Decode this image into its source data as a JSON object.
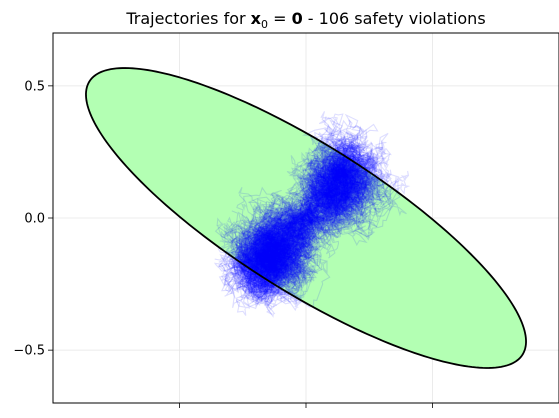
{
  "chart_data": {
    "type": "line",
    "title": {
      "prefix": "Trajectories for ",
      "math_bold_x": "x",
      "math_sub": "0",
      "math_eq": " = ",
      "math_bold_zero": "0",
      "suffix": " - 106 safety violations"
    },
    "xlabel": "",
    "ylabel": "",
    "xlim": [
      -1.0,
      1.0
    ],
    "ylim": [
      -0.7,
      0.7
    ],
    "x_ticks": [
      -0.5,
      0.0,
      0.5
    ],
    "x_tick_labels": [
      "",
      "",
      ""
    ],
    "y_ticks": [
      -0.5,
      0.0,
      0.5
    ],
    "y_tick_labels": [
      "−0.5",
      "0.0",
      "0.5"
    ],
    "grid": true,
    "safe_set": {
      "shape": "ellipse",
      "center": [
        0.0,
        0.0
      ],
      "boundary_points": [
        [
          -0.91,
          0.36
        ],
        [
          -0.85,
          0.55
        ],
        [
          -0.6,
          0.64
        ],
        [
          -0.2,
          0.55
        ],
        [
          0.4,
          0.3
        ],
        [
          0.8,
          0.02
        ],
        [
          0.91,
          -0.36
        ],
        [
          0.85,
          -0.55
        ],
        [
          0.6,
          -0.64
        ],
        [
          0.2,
          -0.55
        ],
        [
          -0.4,
          -0.3
        ],
        [
          -0.8,
          -0.02
        ]
      ],
      "fill_color": "#b3ffb3",
      "edge_color": "#000000"
    },
    "trajectories": {
      "color": "#0000ff",
      "count_shown": 220,
      "origin": [
        0.0,
        0.0
      ],
      "extent": {
        "x": [
          -0.38,
          0.38
        ],
        "y": [
          -0.42,
          0.42
        ]
      }
    },
    "violations": 106
  }
}
